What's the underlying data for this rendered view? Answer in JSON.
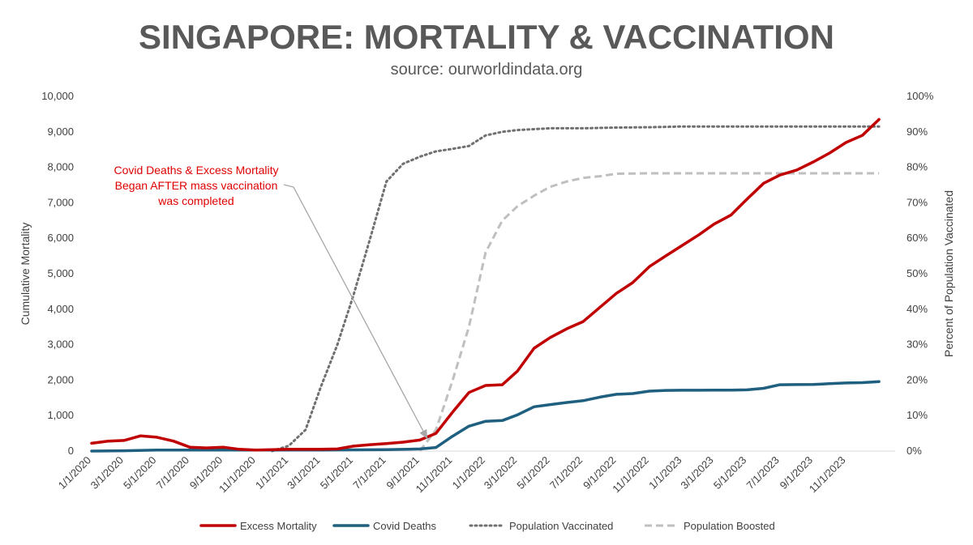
{
  "chart_data": {
    "type": "line",
    "title": "SINGAPORE: MORTALITY & VACCINATION",
    "subtitle": "source: ourworldindata.org",
    "ylabel": "Cumulative Mortality",
    "y2label": "Percent of Population Vaccinated",
    "ylim": [
      0,
      10000
    ],
    "y2lim": [
      0,
      100
    ],
    "y_ticks": [
      "0",
      "1,000",
      "2,000",
      "3,000",
      "4,000",
      "5,000",
      "6,000",
      "7,000",
      "8,000",
      "9,000",
      "10,000"
    ],
    "y2_ticks": [
      "0%",
      "10%",
      "20%",
      "30%",
      "40%",
      "50%",
      "60%",
      "70%",
      "80%",
      "90%",
      "100%"
    ],
    "x_ticks": [
      "1/1/2020",
      "3/1/2020",
      "5/1/2020",
      "7/1/2020",
      "9/1/2020",
      "11/1/2020",
      "1/1/2021",
      "3/1/2021",
      "5/1/2021",
      "7/1/2021",
      "9/1/2021",
      "11/1/2021",
      "1/1/2022",
      "3/1/2022",
      "5/1/2022",
      "7/1/2022",
      "9/1/2022",
      "11/1/2022",
      "1/1/2023",
      "3/1/2023",
      "5/1/2023",
      "7/1/2023",
      "9/1/2023",
      "11/1/2023"
    ],
    "grid": false,
    "legend_position": "bottom",
    "annotation": {
      "lines": [
        "Covid Deaths & Excess Mortality",
        "Began AFTER mass vaccination",
        "was completed"
      ],
      "color": "#e00000"
    },
    "series": [
      {
        "name": "Excess Mortality",
        "axis": "left",
        "color": "#c00000",
        "style": "solid",
        "points": [
          [
            "2020-01-01",
            220
          ],
          [
            "2020-02-01",
            280
          ],
          [
            "2020-03-01",
            300
          ],
          [
            "2020-04-01",
            430
          ],
          [
            "2020-05-01",
            390
          ],
          [
            "2020-06-01",
            280
          ],
          [
            "2020-07-01",
            110
          ],
          [
            "2020-08-01",
            90
          ],
          [
            "2020-09-01",
            110
          ],
          [
            "2020-10-01",
            50
          ],
          [
            "2020-11-01",
            30
          ],
          [
            "2020-12-01",
            40
          ],
          [
            "2021-01-01",
            50
          ],
          [
            "2021-02-01",
            50
          ],
          [
            "2021-03-01",
            50
          ],
          [
            "2021-04-01",
            60
          ],
          [
            "2021-05-01",
            140
          ],
          [
            "2021-06-01",
            180
          ],
          [
            "2021-07-01",
            210
          ],
          [
            "2021-08-01",
            250
          ],
          [
            "2021-09-01",
            310
          ],
          [
            "2021-10-01",
            500
          ],
          [
            "2021-11-01",
            1100
          ],
          [
            "2021-12-01",
            1650
          ],
          [
            "2022-01-01",
            1850
          ],
          [
            "2022-02-01",
            1870
          ],
          [
            "2022-03-01",
            2250
          ],
          [
            "2022-04-01",
            2900
          ],
          [
            "2022-05-01",
            3200
          ],
          [
            "2022-06-01",
            3450
          ],
          [
            "2022-07-01",
            3650
          ],
          [
            "2022-08-01",
            4050
          ],
          [
            "2022-09-01",
            4450
          ],
          [
            "2022-10-01",
            4750
          ],
          [
            "2022-11-01",
            5200
          ],
          [
            "2022-12-01",
            5500
          ],
          [
            "2023-01-01",
            5800
          ],
          [
            "2023-02-01",
            6100
          ],
          [
            "2023-03-01",
            6400
          ],
          [
            "2023-04-01",
            6650
          ],
          [
            "2023-05-01",
            7100
          ],
          [
            "2023-06-01",
            7550
          ],
          [
            "2023-07-01",
            7780
          ],
          [
            "2023-08-01",
            7920
          ],
          [
            "2023-09-01",
            8150
          ],
          [
            "2023-10-01",
            8400
          ],
          [
            "2023-11-01",
            8700
          ],
          [
            "2023-12-01",
            8900
          ],
          [
            "2024-01-01",
            9350
          ]
        ]
      },
      {
        "name": "Covid Deaths",
        "axis": "left",
        "color": "#1f5f7f",
        "style": "solid",
        "points": [
          [
            "2020-01-01",
            0
          ],
          [
            "2020-03-01",
            10
          ],
          [
            "2020-05-01",
            30
          ],
          [
            "2020-07-01",
            30
          ],
          [
            "2020-09-01",
            30
          ],
          [
            "2020-11-01",
            30
          ],
          [
            "2021-01-01",
            30
          ],
          [
            "2021-03-01",
            30
          ],
          [
            "2021-05-01",
            35
          ],
          [
            "2021-07-01",
            40
          ],
          [
            "2021-09-01",
            60
          ],
          [
            "2021-10-01",
            100
          ],
          [
            "2021-11-01",
            420
          ],
          [
            "2021-12-01",
            700
          ],
          [
            "2022-01-01",
            840
          ],
          [
            "2022-02-01",
            860
          ],
          [
            "2022-03-01",
            1020
          ],
          [
            "2022-04-01",
            1250
          ],
          [
            "2022-05-01",
            1310
          ],
          [
            "2022-06-01",
            1370
          ],
          [
            "2022-07-01",
            1420
          ],
          [
            "2022-08-01",
            1520
          ],
          [
            "2022-09-01",
            1600
          ],
          [
            "2022-10-01",
            1620
          ],
          [
            "2022-11-01",
            1690
          ],
          [
            "2022-12-01",
            1710
          ],
          [
            "2023-01-01",
            1715
          ],
          [
            "2023-02-01",
            1715
          ],
          [
            "2023-03-01",
            1720
          ],
          [
            "2023-04-01",
            1720
          ],
          [
            "2023-05-01",
            1725
          ],
          [
            "2023-06-01",
            1770
          ],
          [
            "2023-07-01",
            1870
          ],
          [
            "2023-08-01",
            1875
          ],
          [
            "2023-09-01",
            1880
          ],
          [
            "2023-10-01",
            1900
          ],
          [
            "2023-11-01",
            1920
          ],
          [
            "2023-12-01",
            1930
          ],
          [
            "2024-01-01",
            1960
          ]
        ]
      },
      {
        "name": "Population Vaccinated",
        "axis": "right",
        "color": "#707070",
        "style": "dotted",
        "points": [
          [
            "2020-12-01",
            0
          ],
          [
            "2021-01-01",
            1.5
          ],
          [
            "2021-02-01",
            6
          ],
          [
            "2021-03-01",
            18
          ],
          [
            "2021-04-01",
            30
          ],
          [
            "2021-05-01",
            44
          ],
          [
            "2021-06-01",
            60
          ],
          [
            "2021-07-01",
            76
          ],
          [
            "2021-08-01",
            81
          ],
          [
            "2021-09-01",
            83
          ],
          [
            "2021-10-01",
            84.5
          ],
          [
            "2021-11-01",
            85.2
          ],
          [
            "2021-12-01",
            86
          ],
          [
            "2022-01-01",
            89
          ],
          [
            "2022-02-01",
            90
          ],
          [
            "2022-03-01",
            90.5
          ],
          [
            "2022-05-01",
            91
          ],
          [
            "2022-07-01",
            91
          ],
          [
            "2022-09-01",
            91.2
          ],
          [
            "2022-11-01",
            91.3
          ],
          [
            "2023-01-01",
            91.5
          ],
          [
            "2023-05-01",
            91.5
          ],
          [
            "2023-09-01",
            91.5
          ],
          [
            "2024-01-01",
            91.5
          ]
        ]
      },
      {
        "name": "Population Boosted",
        "axis": "right",
        "color": "#bfbfbf",
        "style": "dashed",
        "points": [
          [
            "2021-09-01",
            0
          ],
          [
            "2021-10-01",
            6
          ],
          [
            "2021-11-01",
            20
          ],
          [
            "2021-12-01",
            35
          ],
          [
            "2022-01-01",
            56
          ],
          [
            "2022-02-01",
            65
          ],
          [
            "2022-03-01",
            69
          ],
          [
            "2022-04-01",
            72
          ],
          [
            "2022-05-01",
            74.5
          ],
          [
            "2022-06-01",
            76
          ],
          [
            "2022-07-01",
            77
          ],
          [
            "2022-08-01",
            77.5
          ],
          [
            "2022-09-01",
            78.2
          ],
          [
            "2022-11-01",
            78.3
          ],
          [
            "2023-01-01",
            78.3
          ],
          [
            "2023-05-01",
            78.3
          ],
          [
            "2023-09-01",
            78.3
          ],
          [
            "2024-01-01",
            78.3
          ]
        ]
      }
    ]
  }
}
